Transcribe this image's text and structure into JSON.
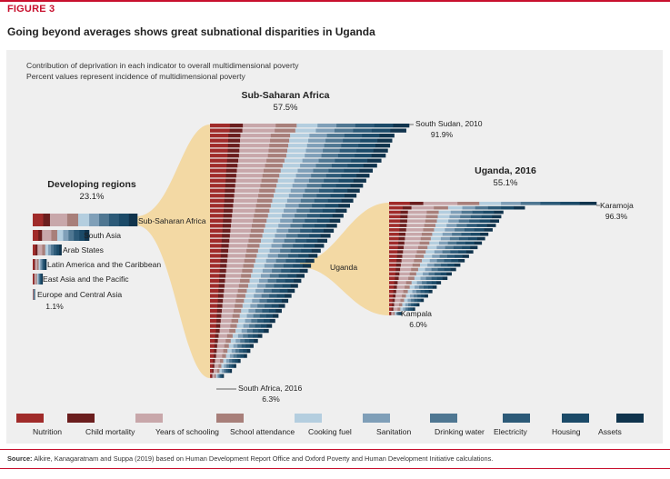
{
  "figure_label": "FIGURE 3",
  "title": "Going beyond averages shows great subnational disparities in Uganda",
  "subtitle_line1": "Contribution of deprivation in each indicator to overall multidimensional poverty",
  "subtitle_line2": "Percent values represent incidence of multidimensional poverty",
  "source_label": "Source:",
  "source_text": "Alkire, Kanagaratnam and Suppa (2019) based on Human Development Report Office and Oxford Poverty and Human Development Initiative calculations.",
  "colors": [
    "#a02b2a",
    "#6b1e1e",
    "#c8a7aa",
    "#a87f7a",
    "#b4cedf",
    "#7f9fb8",
    "#4f7792",
    "#2c5a78",
    "#1b4a68",
    "#10344d"
  ],
  "chart_data": {
    "type": "bar",
    "orientation": "horizontal-stacked",
    "indicators": [
      "Nutrition",
      "Child mortality",
      "Years of schooling",
      "School attendance",
      "Cooking fuel",
      "Sanitation",
      "Drinking water",
      "Electricity",
      "Housing",
      "Assets"
    ],
    "groups": [
      {
        "key": "developing",
        "title": "Developing regions",
        "value_label": "23.1%",
        "bars": [
          {
            "label": "Sub-Saharan Africa",
            "value": 57.5
          },
          {
            "label": "South Asia",
            "value": 31.0
          },
          {
            "label": "Arab States",
            "value": 15.8
          },
          {
            "label": "Latin America and the Caribbean",
            "value": 7.5
          },
          {
            "label": "East Asia and the Pacific",
            "value": 5.4
          },
          {
            "label": "Europe and Central Asia",
            "value": 1.1
          }
        ],
        "end_label": "1.1%"
      },
      {
        "key": "ssa",
        "title": "Sub-Saharan Africa",
        "value_label": "57.5%",
        "top_label": "South Sudan, 2010",
        "top_value": "91.9%",
        "bottom_label": "South Africa, 2016",
        "bottom_value": "6.3%",
        "values": [
          91.9,
          90.5,
          85.0,
          84.0,
          83.0,
          82.0,
          81.0,
          79.0,
          77.0,
          75.0,
          73.5,
          72.0,
          70.5,
          69.0,
          67.5,
          66.0,
          64.5,
          63.0,
          61.5,
          60.0,
          58.5,
          57.0,
          55.5,
          54.0,
          52.5,
          51.0,
          49.5,
          48.0,
          46.5,
          45.0,
          43.5,
          42.0,
          40.5,
          39.0,
          37.5,
          36.0,
          34.5,
          33.0,
          31.5,
          30.0,
          28.5,
          27.0,
          24.0,
          22.0,
          20.0,
          18.5,
          17.0,
          14.0,
          12.0,
          10.0,
          6.3
        ]
      },
      {
        "key": "uganda",
        "title": "Uganda, 2016",
        "value_label": "55.1%",
        "top_label": "Karamoja",
        "top_value": "96.3%",
        "bottom_label": "Kampala",
        "bottom_value": "6.0%",
        "values": [
          96.3,
          63.0,
          53.0,
          52.0,
          51.0,
          49.5,
          48.0,
          46.0,
          44.5,
          43.0,
          41.0,
          39.0,
          37.0,
          35.0,
          33.0,
          31.0,
          29.0,
          27.0,
          24.0,
          22.0,
          20.0,
          18.0,
          16.0,
          14.0,
          12.0,
          6.0
        ]
      }
    ],
    "connectors": [
      {
        "from": "Sub-Saharan Africa",
        "to": "Sub-Saharan Africa"
      },
      {
        "from": "Uganda",
        "to": "Uganda, 2016"
      }
    ],
    "connector_labels": [
      "Sub-Saharan Africa",
      "Uganda"
    ],
    "legend": [
      "Nutrition",
      "Child mortality",
      "Years of schooling",
      "School attendance",
      "Cooking fuel",
      "Sanitation",
      "Drinking water",
      "Electricity",
      "Housing",
      "Assets"
    ]
  }
}
